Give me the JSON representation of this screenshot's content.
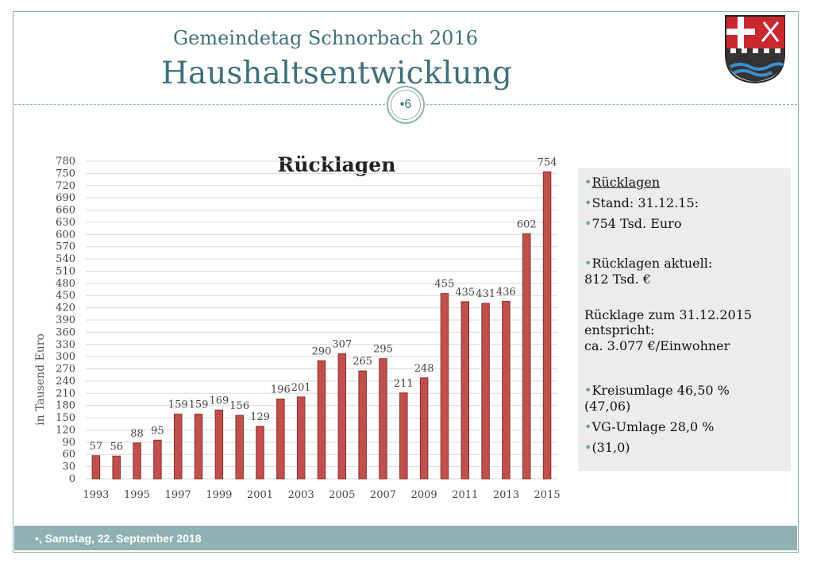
{
  "header": {
    "subtitle": "Gemeindetag Schnorbach 2016",
    "title": "Haushaltsentwicklung",
    "slide_number": "•6"
  },
  "chart_data": {
    "type": "bar",
    "title": "Rücklagen",
    "xlabel": "",
    "ylabel": "in Tausend Euro",
    "ylim": [
      0,
      780
    ],
    "ytick_step": 30,
    "categories": [
      "1993",
      "1994",
      "1995",
      "1996",
      "1997",
      "1998",
      "1999",
      "2000",
      "2001",
      "2002",
      "2003",
      "2004",
      "2005",
      "2006",
      "2007",
      "2008",
      "2009",
      "2010",
      "2011",
      "2012",
      "2013",
      "2014",
      "2015"
    ],
    "xtick_labels": [
      "1993",
      "1995",
      "1997",
      "1999",
      "2001",
      "2003",
      "2005",
      "2007",
      "2009",
      "2011",
      "2013",
      "2015"
    ],
    "values": [
      57,
      56,
      88,
      95,
      159,
      159,
      169,
      156,
      129,
      196,
      201,
      290,
      307,
      265,
      295,
      211,
      248,
      455,
      435,
      431,
      436,
      602,
      754
    ],
    "bar_color": "#c0504d",
    "grid": true
  },
  "info": {
    "line1": "Rücklagen",
    "line2": "Stand: 31.12.15:",
    "line3": "754 Tsd. Euro",
    "line4": "Rücklagen aktuell:",
    "line5": "812 Tsd. €",
    "line6": "Rücklage zum 31.12.2015",
    "line7": "entspricht:",
    "line8": "ca. 3.077  €/Einwohner",
    "line9": "Kreisumlage  46,50 %",
    "line10": "(47,06)",
    "line11": "VG-Umlage   28,0 %",
    "line12": "(31,0)"
  },
  "footer": {
    "date": "•, Samstag, 22. September 2018"
  },
  "colors": {
    "accent": "#8fb1b1",
    "title": "#3f6f7a",
    "bars": "#c0504d"
  }
}
